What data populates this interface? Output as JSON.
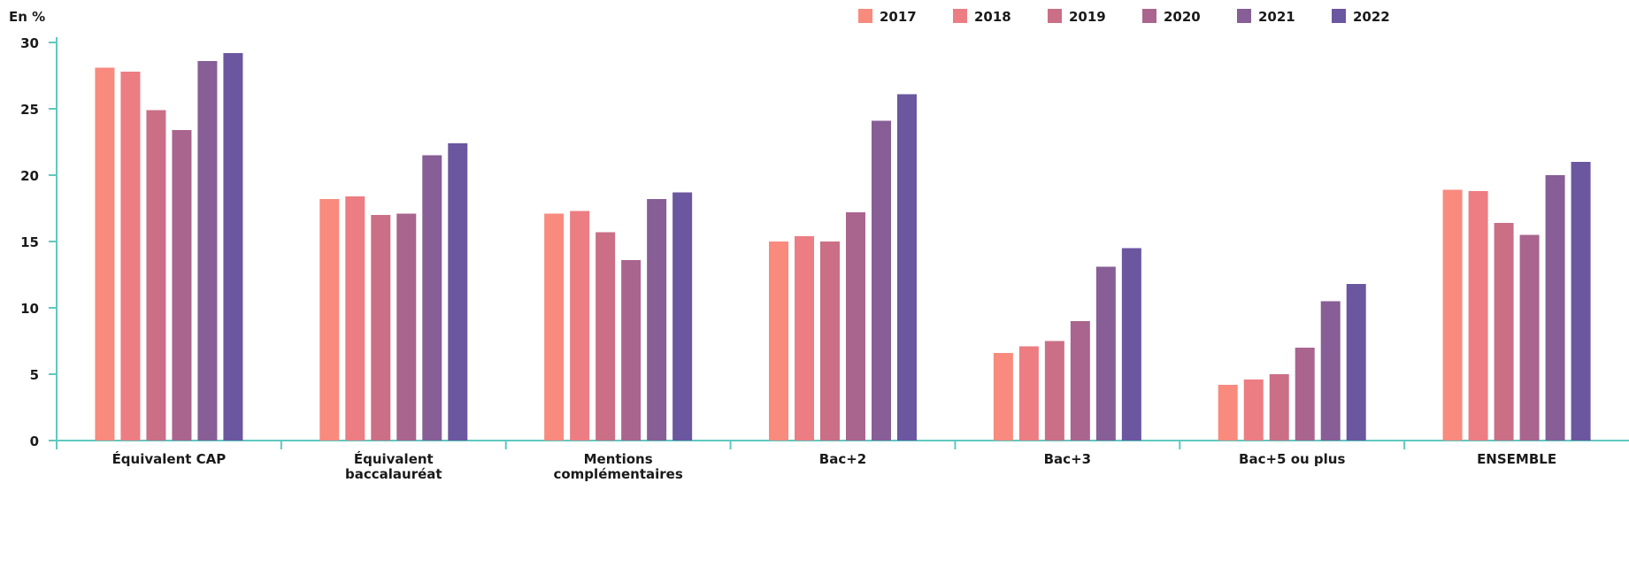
{
  "chart_data": {
    "type": "bar",
    "ylabel": "En %",
    "ylim": [
      0,
      30
    ],
    "yticks": [
      0,
      5,
      10,
      15,
      20,
      25,
      30
    ],
    "legend_position": "top-right",
    "categories": [
      "Équivalent CAP",
      "Équivalent baccalauréat",
      "Mentions complémentaires",
      "Bac+2",
      "Bac+3",
      "Bac+5 ou plus",
      "ENSEMBLE"
    ],
    "category_lines": [
      [
        "Équivalent CAP"
      ],
      [
        "Équivalent",
        "baccalauréat"
      ],
      [
        "Mentions",
        "complémentaires"
      ],
      [
        "Bac+2"
      ],
      [
        "Bac+3"
      ],
      [
        "Bac+5 ou plus"
      ],
      [
        "ENSEMBLE"
      ]
    ],
    "series": [
      {
        "name": "2017",
        "color": "#F88A7E",
        "values": [
          28.1,
          18.2,
          17.1,
          15.0,
          6.6,
          4.2,
          18.9
        ]
      },
      {
        "name": "2018",
        "color": "#EC7D82",
        "values": [
          27.8,
          18.4,
          17.3,
          15.4,
          7.1,
          4.6,
          18.8
        ]
      },
      {
        "name": "2019",
        "color": "#CA6F86",
        "values": [
          24.9,
          17.0,
          15.7,
          15.0,
          7.5,
          5.0,
          16.4
        ]
      },
      {
        "name": "2020",
        "color": "#A9658E",
        "values": [
          23.4,
          17.1,
          13.6,
          17.2,
          9.0,
          7.0,
          15.5
        ]
      },
      {
        "name": "2021",
        "color": "#875E96",
        "values": [
          28.6,
          21.5,
          18.2,
          24.1,
          13.1,
          10.5,
          20.0
        ]
      },
      {
        "name": "2022",
        "color": "#6B56A0",
        "values": [
          29.2,
          22.4,
          18.7,
          26.1,
          14.5,
          11.8,
          21.0
        ]
      }
    ],
    "colors": {
      "axis": "#5FC9BF",
      "text": "#1a1a1a"
    }
  }
}
